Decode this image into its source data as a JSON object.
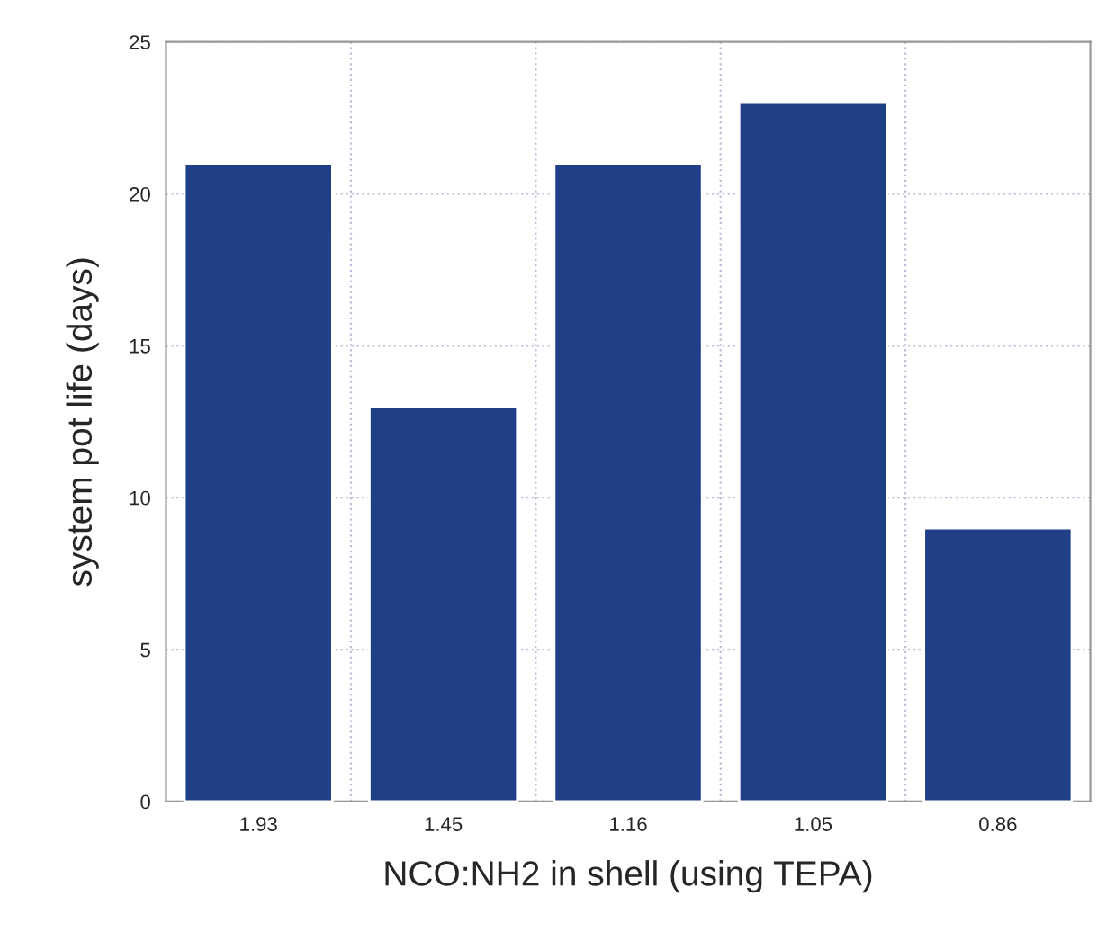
{
  "chart_data": {
    "type": "bar",
    "xlabel": "NCO:NH2 in shell (using TEPA)",
    "ylabel": "system pot life (days)",
    "categories": [
      "1.93",
      "1.45",
      "1.16",
      "1.05",
      "0.86"
    ],
    "values": [
      21,
      13,
      21,
      23,
      9
    ],
    "color": "#1f3f87",
    "ylim": [
      0,
      25
    ],
    "yticks": [
      0,
      5,
      10,
      15,
      20,
      25
    ],
    "grid": true
  }
}
